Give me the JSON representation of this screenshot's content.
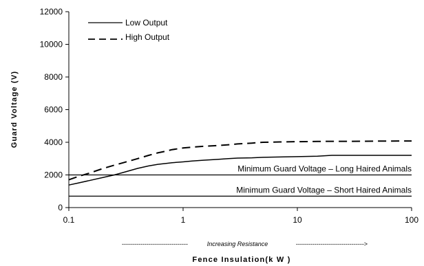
{
  "chart_data": {
    "type": "line",
    "x_scale": "log",
    "xlim": [
      0.1,
      100
    ],
    "ylim": [
      0,
      12000
    ],
    "xticks": [
      "0.1",
      "1",
      "10",
      "100"
    ],
    "yticks": [
      "0",
      "2000",
      "4000",
      "6000",
      "8000",
      "10000",
      "12000"
    ],
    "xlabel": "Fence Insulation(k W )",
    "ylabel": "Guard Voltage (V)",
    "x_annotation": {
      "left_dashes": "--------------------------------",
      "text": "Increasing Resistance",
      "right_dashes": "--------------------------------->"
    },
    "grid": false,
    "legend_position": "top-left",
    "series": [
      {
        "name": "Low Output",
        "style": "solid",
        "x": [
          0.1,
          0.12,
          0.15,
          0.2,
          0.25,
          0.3,
          0.4,
          0.5,
          0.6,
          0.7,
          0.8,
          1,
          1.2,
          1.5,
          2,
          2.5,
          3,
          4,
          5,
          7,
          10,
          15,
          20,
          30,
          50,
          100
        ],
        "y": [
          1380,
          1500,
          1650,
          1850,
          2000,
          2150,
          2400,
          2550,
          2650,
          2700,
          2750,
          2800,
          2850,
          2900,
          2950,
          3000,
          3030,
          3050,
          3080,
          3100,
          3120,
          3150,
          3200,
          3200,
          3200,
          3200
        ]
      },
      {
        "name": "High Output",
        "style": "dashed",
        "x": [
          0.1,
          0.12,
          0.15,
          0.2,
          0.25,
          0.3,
          0.4,
          0.5,
          0.6,
          0.7,
          0.8,
          1,
          1.2,
          1.5,
          2,
          2.5,
          3,
          4,
          5,
          7,
          10,
          15,
          20,
          30,
          50,
          100
        ],
        "y": [
          1700,
          1900,
          2100,
          2400,
          2600,
          2750,
          3000,
          3200,
          3350,
          3450,
          3550,
          3650,
          3700,
          3750,
          3800,
          3850,
          3900,
          3950,
          4000,
          4020,
          4040,
          4050,
          4060,
          4060,
          4070,
          4080
        ]
      }
    ],
    "reference_lines": [
      {
        "label": "Minimum Guard Voltage – Long Haired Animals",
        "y": 2000
      },
      {
        "label": "Minimum Guard Voltage – Short Haired Animals",
        "y": 700
      }
    ]
  }
}
